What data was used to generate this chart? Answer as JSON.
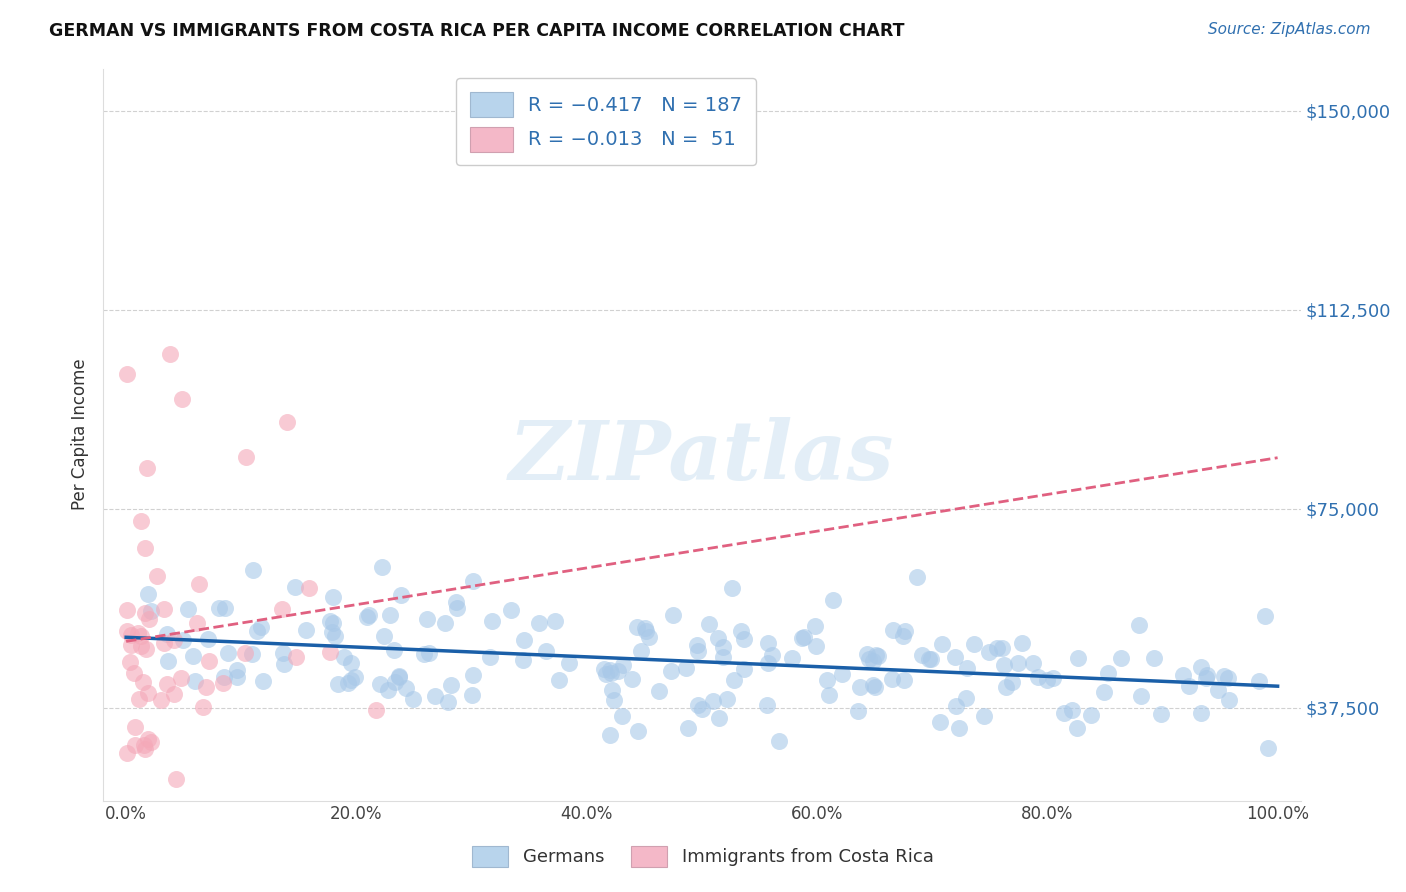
{
  "title": "GERMAN VS IMMIGRANTS FROM COSTA RICA PER CAPITA INCOME CORRELATION CHART",
  "source": "Source: ZipAtlas.com",
  "ylabel": "Per Capita Income",
  "watermark": "ZIPatlas",
  "blue_R": -0.417,
  "blue_N": 187,
  "pink_R": -0.013,
  "pink_N": 51,
  "blue_color": "#a8c8e8",
  "pink_color": "#f4a8b8",
  "blue_line_color": "#1a5fa8",
  "pink_line_color": "#e06080",
  "y_tick_labels": [
    "$37,500",
    "$75,000",
    "$112,500",
    "$150,000"
  ],
  "y_tick_values": [
    37500,
    75000,
    112500,
    150000
  ],
  "x_tick_labels": [
    "0.0%",
    "20.0%",
    "40.0%",
    "60.0%",
    "80.0%",
    "100.0%"
  ],
  "x_tick_values": [
    0.0,
    20.0,
    40.0,
    60.0,
    80.0,
    100.0
  ],
  "ylim": [
    20000,
    158000
  ],
  "xlim": [
    -2,
    102
  ],
  "legend_german": "Germans",
  "legend_immigrant": "Immigrants from Costa Rica",
  "background_color": "#ffffff",
  "grid_color": "#cccccc"
}
